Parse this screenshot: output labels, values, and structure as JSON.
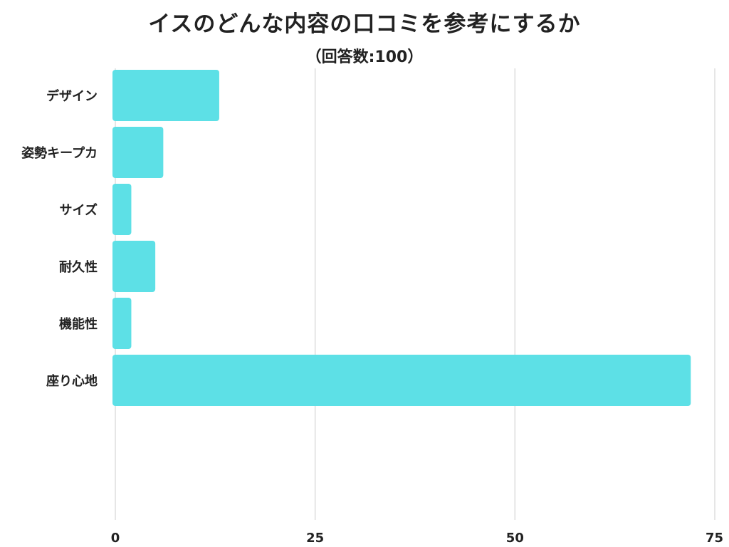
{
  "chart_data": {
    "type": "bar",
    "orientation": "horizontal",
    "title": "イスのどんな内容の口コミを参考にするか",
    "subtitle": "（回答数:100）",
    "xlabel": "",
    "ylabel": "",
    "categories": [
      "デザイン",
      "姿勢キープカ",
      "サイズ",
      "耐久性",
      "機能性",
      "座り心地"
    ],
    "values": [
      13,
      6,
      2,
      5,
      2,
      72
    ],
    "xlim": [
      0,
      75
    ],
    "xticks": [
      0,
      25,
      50,
      75
    ],
    "xtick_labels": [
      "0",
      "25",
      "50",
      "75"
    ],
    "grid": "vertical",
    "legend": "none",
    "bar_color": "#5de0e6",
    "grid_color": "#dddddd",
    "text_color": "#222222"
  }
}
